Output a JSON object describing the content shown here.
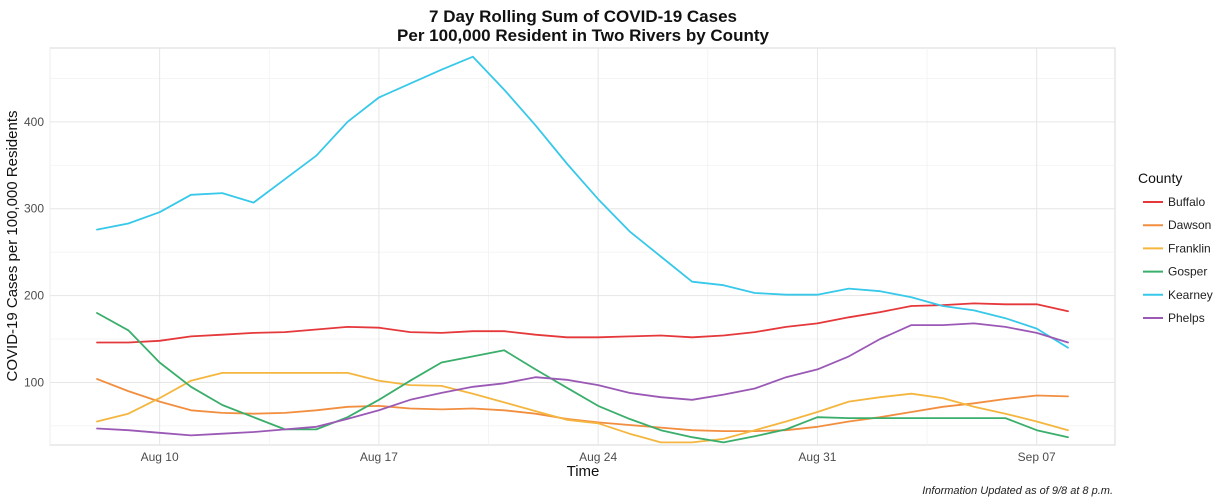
{
  "chart_data": {
    "type": "line",
    "title": "7 Day Rolling Sum of COVID-19 Cases",
    "subtitle": "Per 100,000 Resident in Two Rivers by County",
    "xlabel": "Time",
    "ylabel": "COVID-19 Cases per 100,000 Residents",
    "x_ticks": [
      "Aug 10",
      "Aug 17",
      "Aug 24",
      "Aug 31",
      "Sep 07"
    ],
    "y_ticks": [
      100,
      200,
      300,
      400
    ],
    "ylim": [
      28,
      485
    ],
    "grid": true,
    "legend_title": "County",
    "legend_position": "right",
    "footnote": "Information Updated as of 9/8 at 8 p.m.",
    "x": [
      "2020-08-08",
      "2020-08-09",
      "2020-08-10",
      "2020-08-11",
      "2020-08-12",
      "2020-08-13",
      "2020-08-14",
      "2020-08-15",
      "2020-08-16",
      "2020-08-17",
      "2020-08-18",
      "2020-08-19",
      "2020-08-20",
      "2020-08-21",
      "2020-08-22",
      "2020-08-23",
      "2020-08-24",
      "2020-08-25",
      "2020-08-26",
      "2020-08-27",
      "2020-08-28",
      "2020-08-29",
      "2020-08-30",
      "2020-08-31",
      "2020-09-01",
      "2020-09-02",
      "2020-09-03",
      "2020-09-04",
      "2020-09-05",
      "2020-09-06",
      "2020-09-07",
      "2020-09-08"
    ],
    "series": [
      {
        "name": "Buffalo",
        "color": "#e5383b",
        "values": [
          146,
          146,
          148,
          153,
          155,
          157,
          158,
          161,
          164,
          163,
          158,
          157,
          159,
          159,
          155,
          152,
          152,
          153,
          154,
          152,
          154,
          158,
          164,
          168,
          175,
          181,
          188,
          189,
          191,
          190,
          190,
          182
        ]
      },
      {
        "name": "Dawson",
        "color": "#f28e3f",
        "values": [
          104,
          90,
          78,
          68,
          65,
          64,
          65,
          68,
          72,
          73,
          70,
          69,
          70,
          68,
          64,
          58,
          54,
          51,
          48,
          45,
          44,
          44,
          45,
          49,
          55,
          60,
          66,
          72,
          76,
          81,
          85,
          84
        ]
      },
      {
        "name": "Franklin",
        "color": "#f4b63f",
        "values": [
          55,
          64,
          82,
          102,
          111,
          111,
          111,
          111,
          111,
          102,
          97,
          96,
          87,
          77,
          67,
          57,
          53,
          41,
          31,
          31,
          35,
          45,
          55,
          66,
          78,
          83,
          87,
          82,
          72,
          64,
          55,
          45
        ]
      },
      {
        "name": "Gosper",
        "color": "#3aae6b",
        "values": [
          180,
          160,
          123,
          95,
          74,
          60,
          46,
          46,
          60,
          80,
          102,
          123,
          130,
          137,
          115,
          94,
          73,
          58,
          45,
          37,
          31,
          38,
          46,
          60,
          59,
          59,
          59,
          59,
          59,
          59,
          45,
          37
        ]
      },
      {
        "name": "Kearney",
        "color": "#37c8ea",
        "values": [
          276,
          283,
          296,
          316,
          318,
          307,
          334,
          361,
          400,
          428,
          444,
          460,
          475,
          437,
          396,
          352,
          311,
          274,
          245,
          216,
          212,
          203,
          201,
          201,
          208,
          205,
          198,
          188,
          183,
          174,
          162,
          140
        ]
      },
      {
        "name": "Phelps",
        "color": "#9b59b6",
        "values": [
          47,
          45,
          42,
          39,
          41,
          43,
          46,
          49,
          58,
          68,
          80,
          88,
          95,
          99,
          106,
          103,
          97,
          88,
          83,
          80,
          86,
          93,
          106,
          115,
          130,
          150,
          166,
          166,
          168,
          164,
          157,
          146
        ]
      }
    ]
  }
}
